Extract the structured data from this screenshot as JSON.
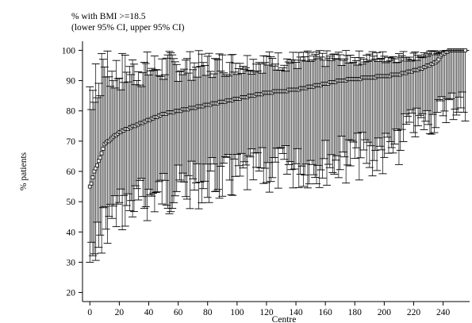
{
  "chart_data": {
    "type": "scatter",
    "title_lines": [
      "% with BMI >=18.5",
      "(lower 95% CI, upper 95% CI)"
    ],
    "xlabel": "Centre",
    "ylabel": "% patients",
    "xlim": [
      -5,
      258
    ],
    "ylim": [
      17,
      103
    ],
    "xticks": [
      0,
      20,
      40,
      60,
      80,
      100,
      120,
      140,
      160,
      180,
      200,
      220,
      240
    ],
    "yticks": [
      20,
      30,
      40,
      50,
      60,
      70,
      80,
      90,
      100
    ],
    "grid": false,
    "legend": "none",
    "n_centres": 256,
    "series": [
      {
        "marker": "square",
        "error_bars": "95% CI",
        "anchors": [
          [
            0,
            55
          ],
          [
            1,
            56
          ],
          [
            3,
            60
          ],
          [
            5,
            62
          ],
          [
            8,
            66
          ],
          [
            10,
            69
          ],
          [
            15,
            71
          ],
          [
            20,
            73
          ],
          [
            30,
            75
          ],
          [
            40,
            77
          ],
          [
            50,
            79
          ],
          [
            60,
            80
          ],
          [
            80,
            82
          ],
          [
            100,
            84
          ],
          [
            120,
            86
          ],
          [
            140,
            87
          ],
          [
            150,
            88
          ],
          [
            170,
            90
          ],
          [
            190,
            91
          ],
          [
            210,
            92
          ],
          [
            225,
            94
          ],
          [
            235,
            96
          ],
          [
            240,
            99
          ],
          [
            245,
            100
          ],
          [
            255,
            100
          ]
        ]
      }
    ]
  }
}
